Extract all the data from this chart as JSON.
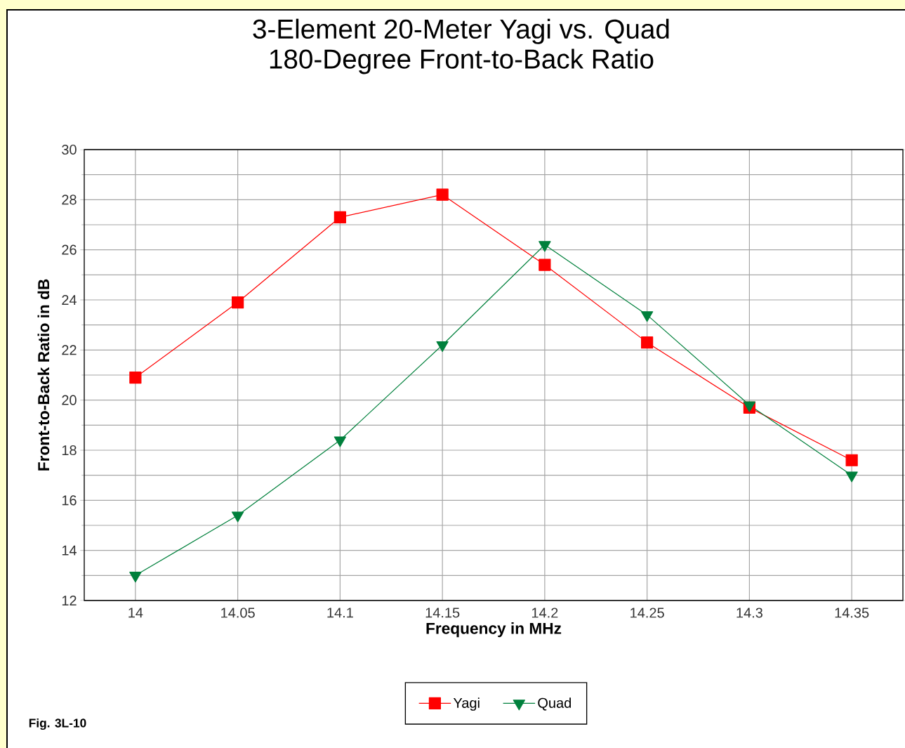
{
  "chart_data": {
    "type": "line",
    "title": "3-Element 20-Meter Yagi vs. Quad",
    "subtitle": "180-Degree Front-to-Back Ratio",
    "xlabel": "Frequency in MHz",
    "ylabel": "Front-to-Back Ratio in dB",
    "x": [
      14,
      14.05,
      14.1,
      14.15,
      14.2,
      14.25,
      14.3,
      14.35
    ],
    "series": [
      {
        "name": "Yagi",
        "color": "#ff0000",
        "marker": "square",
        "values": [
          20.9,
          23.9,
          27.3,
          28.2,
          25.4,
          22.3,
          19.7,
          17.6
        ]
      },
      {
        "name": "Quad",
        "color": "#00803c",
        "marker": "triangle",
        "values": [
          13.0,
          15.4,
          18.4,
          22.2,
          26.2,
          23.4,
          19.8,
          17.0
        ]
      }
    ],
    "xlim": [
      13.975,
      14.375
    ],
    "xticks": [
      14,
      14.05,
      14.1,
      14.15,
      14.2,
      14.25,
      14.3,
      14.35
    ],
    "ylim": [
      12,
      30
    ],
    "yticks": [
      12,
      14,
      16,
      18,
      20,
      22,
      24,
      26,
      28,
      30
    ],
    "grid": true,
    "legend": "bottom",
    "annotations": [
      "Fig. 3L-10"
    ]
  }
}
